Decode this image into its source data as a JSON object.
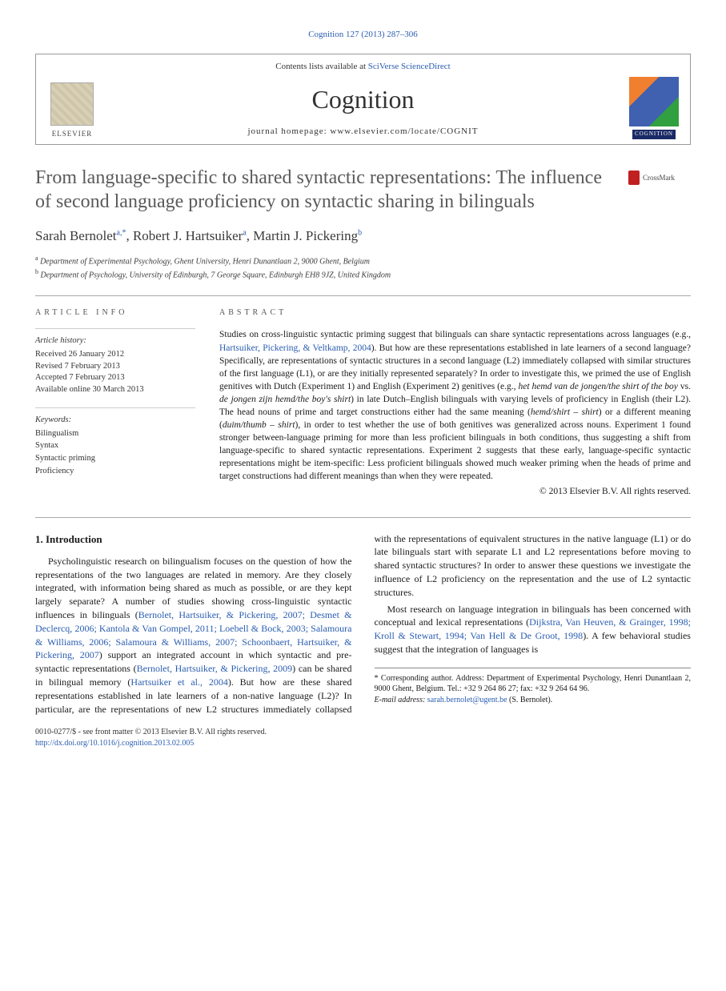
{
  "citation": "Cognition 127 (2013) 287–306",
  "header": {
    "contents_prefix": "Contents lists available at ",
    "contents_link": "SciVerse ScienceDirect",
    "journal": "Cognition",
    "homepage_prefix": "journal homepage: ",
    "homepage_url": "www.elsevier.com/locate/COGNIT",
    "elsevier": "ELSEVIER",
    "cognition_label": "COGNITION"
  },
  "title": "From language-specific to shared syntactic representations: The influence of second language proficiency on syntactic sharing in bilinguals",
  "crossmark": "CrossMark",
  "authors_html": "Sarah Bernolet",
  "authors": {
    "a1_name": "Sarah Bernolet",
    "a1_sup": "a,*",
    "sep1": ", ",
    "a2_name": "Robert J. Hartsuiker",
    "a2_sup": "a",
    "sep2": ", ",
    "a3_name": "Martin J. Pickering",
    "a3_sup": "b"
  },
  "affiliations": {
    "a_sup": "a",
    "a_text": " Department of Experimental Psychology, Ghent University, Henri Dunantlaan 2, 9000 Ghent, Belgium",
    "b_sup": "b",
    "b_text": " Department of Psychology, University of Edinburgh, 7 George Square, Edinburgh EH8 9JZ, United Kingdom"
  },
  "info": {
    "heading_info": "article info",
    "history_label": "Article history:",
    "received": "Received 26 January 2012",
    "revised": "Revised 7 February 2013",
    "accepted": "Accepted 7 February 2013",
    "online": "Available online 30 March 2013",
    "keywords_label": "Keywords:",
    "kw1": "Bilingualism",
    "kw2": "Syntax",
    "kw3": "Syntactic priming",
    "kw4": "Proficiency"
  },
  "abstract": {
    "heading": "abstract",
    "p1a": "Studies on cross-linguistic syntactic priming suggest that bilinguals can share syntactic representations across languages (e.g., ",
    "p1link": "Hartsuiker, Pickering, & Veltkamp, 2004",
    "p1b": "). But how are these representations established in late learners of a second language? Specifically, are representations of syntactic structures in a second language (L2) immediately collapsed with similar structures of the first language (L1), or are they initially represented separately? In order to investigate this, we primed the use of English genitives with Dutch (Experiment 1) and English (Experiment 2) genitives (e.g., ",
    "p1i1": "het hemd van de jongen/the shirt of the boy",
    "p1c": " vs. ",
    "p1i2": "de jongen zijn hemd/the boy's shirt",
    "p1d": ") in late Dutch–English bilinguals with varying levels of proficiency in English (their L2). The head nouns of prime and target constructions either had the same meaning (",
    "p1i3": "hemd/shirt – shirt",
    "p1e": ") or a different meaning (",
    "p1i4": "duim/thumb – shirt",
    "p1f": "), in order to test whether the use of both genitives was generalized across nouns. Experiment 1 found stronger between-language priming for more than less proficient bilinguals in both conditions, thus suggesting a shift from language-specific to shared syntactic representations. Experiment 2 suggests that these early, language-specific syntactic representations might be item-specific: Less proficient bilinguals showed much weaker priming when the heads of prime and target constructions had different meanings than when they were repeated.",
    "copyright": "© 2013 Elsevier B.V. All rights reserved."
  },
  "intro": {
    "heading": "1. Introduction",
    "p1a": "Psycholinguistic research on bilingualism focuses on the question of how the representations of the two languages are related in memory. Are they closely integrated, with information being shared as much as possible, or are they kept largely separate? A number of studies showing cross-linguistic syntactic influences in bilinguals (",
    "p1link": "Bernolet, Hartsuiker, & Pickering, 2007; Desmet & Declercq, 2006; Kantola & Van Gompel, 2011; Loebell & Bock, 2003; Salamoura & Williams, 2006; Salamoura & Williams, 2007; Schoonbaert, Hartsuiker, & Pickering, 2007",
    "p1b": ") support an integrated account in which syntactic and pre-syntactic representations (",
    "p1link2": "Bernolet, Hartsuiker, & Pickering, 2009",
    "p1c": ") can be shared in bilingual memory (",
    "p1link3": "Hartsuiker et al., 2004",
    "p1d": "). But how are these shared representations established in late learners of a non-native language (L2)? In particular, are the representations of new L2 structures immediately collapsed with the representations of equivalent structures in the native language (L1) or do late bilinguals start with separate L1 and L2 representations before moving to shared syntactic structures? In order to answer these questions we investigate the influence of L2 proficiency on the representation and the use of L2 syntactic structures.",
    "p2a": "Most research on language integration in bilinguals has been concerned with conceptual and lexical representations (",
    "p2link": "Dijkstra, Van Heuven, & Grainger, 1998; Kroll & Stewart, 1994; Van Hell & De Groot, 1998",
    "p2b": "). A few behavioral studies suggest that the integration of languages is"
  },
  "footnote": {
    "star": "* Corresponding author. Address: Department of Experimental Psychology, Henri Dunantlaan 2, 9000 Ghent, Belgium. Tel.: +32 9 264 86 27; fax: +32 9 264 64 96.",
    "email_label": "E-mail address: ",
    "email": "sarah.bernolet@ugent.be",
    "email_who": " (S. Bernolet)."
  },
  "footer": {
    "left1": "0010-0277/$ - see front matter © 2013 Elsevier B.V. All rights reserved.",
    "doi": "http://dx.doi.org/10.1016/j.cognition.2013.02.005"
  },
  "colors": {
    "link": "#2a5db0",
    "text": "#1a1a1a",
    "title": "#5a5a5a",
    "rule": "#aaaaaa"
  }
}
